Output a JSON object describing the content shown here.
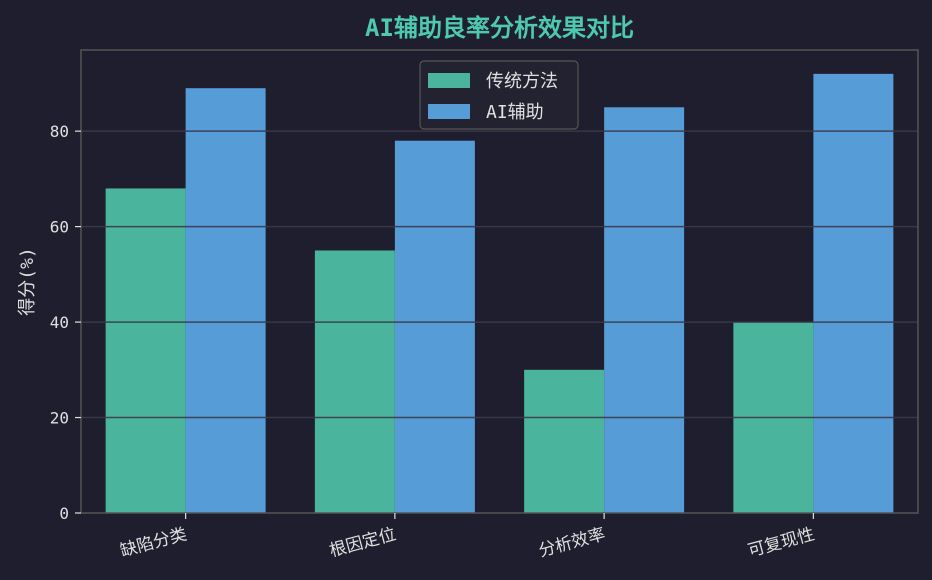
{
  "chart_data": {
    "type": "bar",
    "title": "AI辅助良率分析效果对比",
    "xlabel": "",
    "ylabel": "得分(%)",
    "categories": [
      "缺陷分类",
      "根因定位",
      "分析效率",
      "可复现性"
    ],
    "series": [
      {
        "name": "传统方法",
        "values": [
          68,
          55,
          30,
          40
        ]
      },
      {
        "name": "AI辅助",
        "values": [
          89,
          78,
          85,
          92
        ]
      }
    ],
    "ylim": [
      0,
      97
    ],
    "yticks": [
      "0",
      "20",
      "40",
      "60",
      "80"
    ],
    "grid": true,
    "legend_position": "top-center"
  },
  "colors": {
    "background": "#1e1e2e",
    "title": "#4ec9b0",
    "text": "#e0e0e0",
    "axis": "#555555",
    "grid": "#3a3a4a",
    "series": [
      "#4ab49c",
      "#569cd6"
    ],
    "legend_bg": "#222230",
    "legend_border": "#555555"
  }
}
